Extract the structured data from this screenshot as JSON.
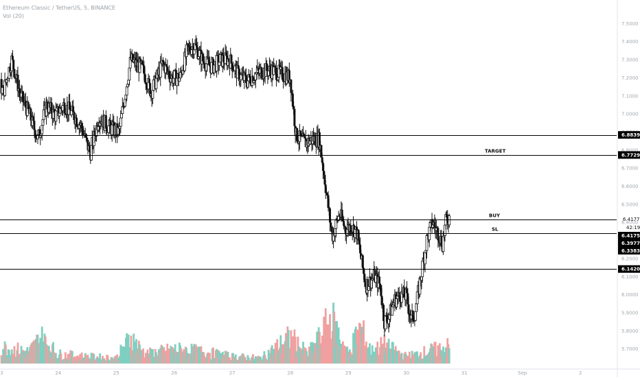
{
  "header": {
    "title": "Ethereum Classic / TetherUS, 5, BINANCE",
    "volume_label": "Vol (20)"
  },
  "colors": {
    "up": "#111111",
    "down": "#111111",
    "vol_up": "#7fcfc0",
    "vol_down": "#f0a0a0",
    "line": "#000000",
    "label_bg": "#000000",
    "axis_text": "#a2a7ad",
    "grid_border": "#e0e3eb"
  },
  "chart_data": {
    "type": "candlestick",
    "symbol": "Ethereum Classic / TetherUS",
    "timeframe": "5",
    "exchange": "BINANCE",
    "ylim": [
      5.6,
      7.6
    ],
    "y_ticks": [
      "7.5000",
      "7.4000",
      "7.3000",
      "7.2000",
      "7.1000",
      "7.0000",
      "6.9000",
      "6.8000",
      "6.7000",
      "6.6000",
      "6.5000",
      "6.4000",
      "6.3000",
      "6.2000",
      "6.1000",
      "6.0000",
      "5.9000",
      "5.8000",
      "5.7000",
      "5.6000"
    ],
    "x_ticks": [
      "23",
      "24",
      "25",
      "26",
      "27",
      "28",
      "29",
      "30",
      "31",
      "Sep",
      "2"
    ],
    "x_tick_positions": [
      0.5,
      1.5,
      2.5,
      3.5,
      4.5,
      5.5,
      6.5,
      7.5,
      8.5,
      9.5,
      10.5
    ],
    "x_range": [
      0,
      11
    ],
    "levels": [
      {
        "value": 6.8839,
        "label": "6.8839",
        "annotation": ""
      },
      {
        "value": 6.7729,
        "label": "6.7729",
        "annotation": "TARGET"
      },
      {
        "value": 6.4177,
        "label": "6.4177",
        "annotation": "BUY"
      },
      {
        "value": 6.3383,
        "label": "6.3383",
        "annotation": "SL"
      },
      {
        "value": 6.142,
        "label": "6.1420",
        "annotation": ""
      }
    ],
    "price_labels": [
      {
        "value": 6.4177,
        "label": "6.4177",
        "style": "plain"
      },
      {
        "value": 6.4175,
        "label": "6.4175",
        "style": "filled"
      },
      {
        "value": 6.3977,
        "label": "6.3977",
        "style": "filled"
      },
      {
        "value": 6.3383,
        "label": "6.3383",
        "style": "filled"
      }
    ],
    "countdown": "42:19",
    "price_anchors": [
      [
        0.0,
        6.76
      ],
      [
        0.12,
        7.05
      ],
      [
        0.22,
        7.35
      ],
      [
        0.3,
        7.18
      ],
      [
        0.4,
        7.25
      ],
      [
        0.55,
        7.12
      ],
      [
        0.7,
        7.3
      ],
      [
        0.85,
        7.1
      ],
      [
        1.0,
        7.0
      ],
      [
        1.15,
        6.86
      ],
      [
        1.3,
        7.05
      ],
      [
        1.45,
        6.99
      ],
      [
        1.6,
        7.05
      ],
      [
        1.75,
        7.0
      ],
      [
        1.9,
        6.93
      ],
      [
        2.05,
        6.78
      ],
      [
        2.2,
        6.98
      ],
      [
        2.4,
        6.92
      ],
      [
        2.55,
        6.9
      ],
      [
        2.75,
        7.3
      ],
      [
        2.95,
        7.25
      ],
      [
        3.1,
        7.12
      ],
      [
        3.3,
        7.28
      ],
      [
        3.45,
        7.2
      ],
      [
        3.6,
        7.2
      ],
      [
        3.72,
        7.35
      ],
      [
        3.85,
        7.38
      ],
      [
        4.0,
        7.29
      ],
      [
        4.15,
        7.26
      ],
      [
        4.3,
        7.3
      ],
      [
        4.45,
        7.3
      ],
      [
        4.6,
        7.22
      ],
      [
        4.75,
        7.18
      ],
      [
        4.9,
        7.22
      ],
      [
        5.05,
        7.24
      ],
      [
        5.2,
        7.24
      ],
      [
        5.35,
        7.22
      ],
      [
        5.5,
        7.2
      ],
      [
        5.6,
        6.88
      ],
      [
        5.75,
        6.84
      ],
      [
        5.9,
        6.86
      ],
      [
        6.0,
        6.86
      ],
      [
        6.1,
        6.62
      ],
      [
        6.22,
        6.32
      ],
      [
        6.35,
        6.45
      ],
      [
        6.45,
        6.36
      ],
      [
        6.55,
        6.38
      ],
      [
        6.65,
        6.34
      ],
      [
        6.72,
        6.2
      ],
      [
        6.8,
        6.05
      ],
      [
        6.95,
        6.1
      ],
      [
        7.05,
        6.05
      ],
      [
        7.12,
        5.85
      ],
      [
        7.2,
        5.88
      ],
      [
        7.3,
        5.97
      ],
      [
        7.4,
        6.0
      ],
      [
        7.5,
        5.99
      ],
      [
        7.58,
        5.86
      ],
      [
        7.65,
        5.9
      ],
      [
        7.75,
        6.1
      ],
      [
        7.85,
        6.3
      ],
      [
        7.95,
        6.4
      ],
      [
        8.05,
        6.34
      ],
      [
        8.12,
        6.28
      ],
      [
        8.18,
        6.4
      ],
      [
        8.24,
        6.43
      ]
    ],
    "volume_ylim": [
      0,
      1
    ],
    "volume_profile": [
      [
        0.0,
        0.55
      ],
      [
        0.12,
        0.8
      ],
      [
        0.3,
        0.45
      ],
      [
        0.5,
        0.35
      ],
      [
        1.0,
        0.25
      ],
      [
        1.2,
        0.55
      ],
      [
        1.5,
        0.2
      ],
      [
        2.0,
        0.15
      ],
      [
        2.5,
        0.12
      ],
      [
        2.75,
        0.55
      ],
      [
        3.0,
        0.2
      ],
      [
        3.5,
        0.3
      ],
      [
        4.0,
        0.25
      ],
      [
        4.5,
        0.15
      ],
      [
        5.0,
        0.12
      ],
      [
        5.5,
        0.55
      ],
      [
        5.8,
        0.2
      ],
      [
        6.05,
        0.6
      ],
      [
        6.2,
        0.95
      ],
      [
        6.5,
        0.2
      ],
      [
        6.7,
        0.75
      ],
      [
        6.9,
        0.25
      ],
      [
        7.1,
        0.4
      ],
      [
        7.5,
        0.15
      ],
      [
        8.0,
        0.3
      ],
      [
        8.2,
        0.35
      ]
    ]
  }
}
